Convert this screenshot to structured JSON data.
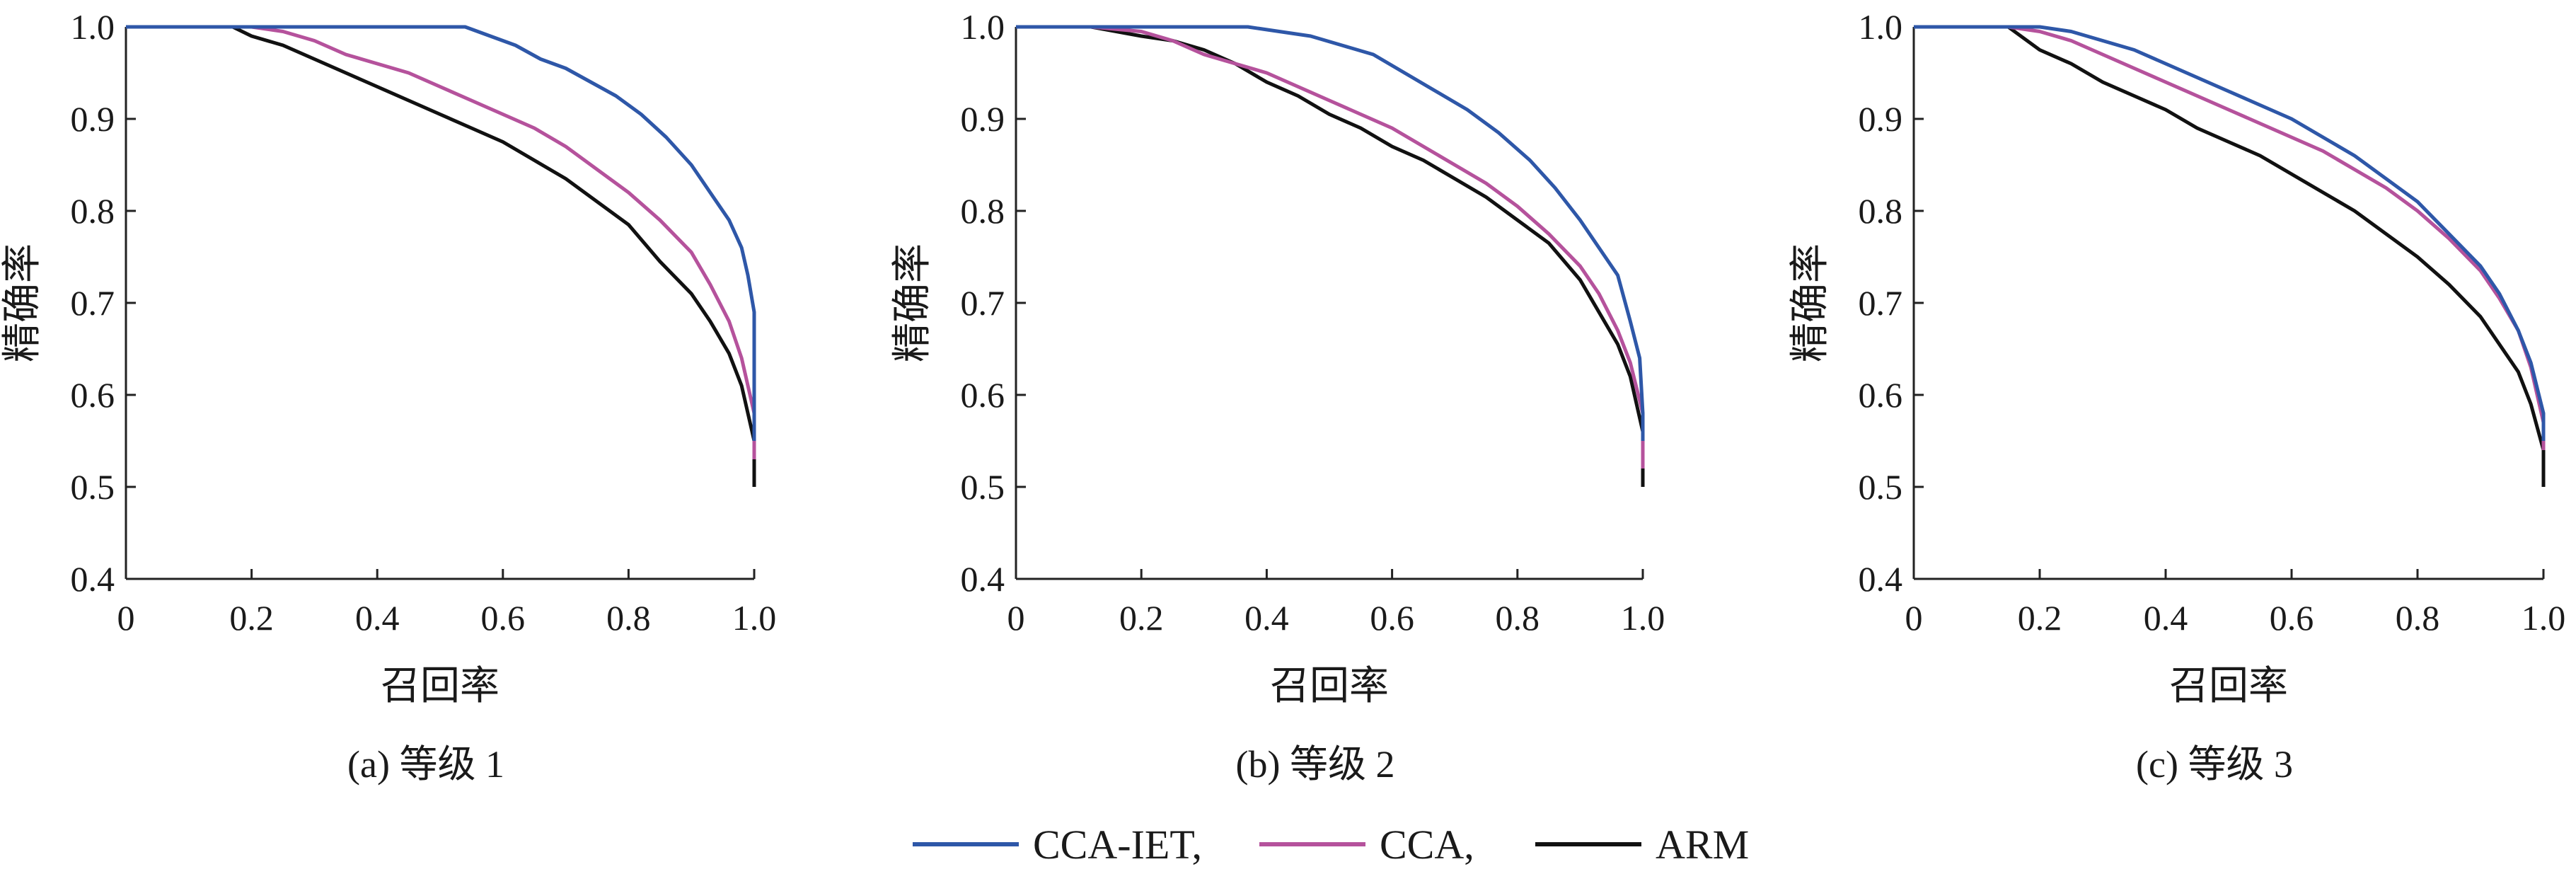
{
  "chart_data": [
    {
      "type": "line",
      "caption": "(a) 等级 1",
      "xlabel": "召回率",
      "ylabel": "精确率",
      "xlim": [
        0,
        1.0
      ],
      "ylim": [
        0.4,
        1.0
      ],
      "x_ticks": [
        "0",
        "0.2",
        "0.4",
        "0.6",
        "0.8",
        "1.0"
      ],
      "y_ticks": [
        "0.4",
        "0.5",
        "0.6",
        "0.7",
        "0.8",
        "0.9",
        "1.0"
      ],
      "series": [
        {
          "name": "CCA-IET,",
          "color": "#2e57a8",
          "points": [
            [
              0,
              1.0
            ],
            [
              0.2,
              1.0
            ],
            [
              0.4,
              1.0
            ],
            [
              0.54,
              1.0
            ],
            [
              0.58,
              0.99
            ],
            [
              0.62,
              0.98
            ],
            [
              0.66,
              0.965
            ],
            [
              0.7,
              0.955
            ],
            [
              0.74,
              0.94
            ],
            [
              0.78,
              0.925
            ],
            [
              0.82,
              0.905
            ],
            [
              0.86,
              0.88
            ],
            [
              0.9,
              0.85
            ],
            [
              0.93,
              0.82
            ],
            [
              0.96,
              0.79
            ],
            [
              0.98,
              0.76
            ],
            [
              0.99,
              0.73
            ],
            [
              1.0,
              0.69
            ],
            [
              1.0,
              0.55
            ]
          ]
        },
        {
          "name": "CCA,",
          "color": "#b5529c",
          "points": [
            [
              0,
              1.0
            ],
            [
              0.2,
              1.0
            ],
            [
              0.25,
              0.995
            ],
            [
              0.3,
              0.985
            ],
            [
              0.35,
              0.97
            ],
            [
              0.4,
              0.96
            ],
            [
              0.45,
              0.95
            ],
            [
              0.5,
              0.935
            ],
            [
              0.55,
              0.92
            ],
            [
              0.6,
              0.905
            ],
            [
              0.65,
              0.89
            ],
            [
              0.7,
              0.87
            ],
            [
              0.75,
              0.845
            ],
            [
              0.8,
              0.82
            ],
            [
              0.85,
              0.79
            ],
            [
              0.9,
              0.755
            ],
            [
              0.93,
              0.72
            ],
            [
              0.96,
              0.68
            ],
            [
              0.98,
              0.64
            ],
            [
              1.0,
              0.58
            ],
            [
              1.0,
              0.53
            ]
          ]
        },
        {
          "name": "ARM",
          "color": "#111111",
          "points": [
            [
              0,
              1.0
            ],
            [
              0.17,
              1.0
            ],
            [
              0.2,
              0.99
            ],
            [
              0.25,
              0.98
            ],
            [
              0.3,
              0.965
            ],
            [
              0.35,
              0.95
            ],
            [
              0.4,
              0.935
            ],
            [
              0.45,
              0.92
            ],
            [
              0.5,
              0.905
            ],
            [
              0.55,
              0.89
            ],
            [
              0.6,
              0.875
            ],
            [
              0.65,
              0.855
            ],
            [
              0.7,
              0.835
            ],
            [
              0.75,
              0.81
            ],
            [
              0.8,
              0.785
            ],
            [
              0.85,
              0.745
            ],
            [
              0.9,
              0.71
            ],
            [
              0.93,
              0.68
            ],
            [
              0.96,
              0.645
            ],
            [
              0.98,
              0.61
            ],
            [
              1.0,
              0.55
            ],
            [
              1.0,
              0.5
            ]
          ]
        }
      ]
    },
    {
      "type": "line",
      "caption": "(b) 等级 2",
      "xlabel": "召回率",
      "ylabel": "精确率",
      "xlim": [
        0,
        1.0
      ],
      "ylim": [
        0.4,
        1.0
      ],
      "x_ticks": [
        "0",
        "0.2",
        "0.4",
        "0.6",
        "0.8",
        "1.0"
      ],
      "y_ticks": [
        "0.4",
        "0.5",
        "0.6",
        "0.7",
        "0.8",
        "0.9",
        "1.0"
      ],
      "series": [
        {
          "name": "CCA-IET,",
          "color": "#2e57a8",
          "points": [
            [
              0,
              1.0
            ],
            [
              0.2,
              1.0
            ],
            [
              0.37,
              1.0
            ],
            [
              0.42,
              0.995
            ],
            [
              0.47,
              0.99
            ],
            [
              0.52,
              0.98
            ],
            [
              0.57,
              0.97
            ],
            [
              0.62,
              0.95
            ],
            [
              0.67,
              0.93
            ],
            [
              0.72,
              0.91
            ],
            [
              0.77,
              0.885
            ],
            [
              0.82,
              0.855
            ],
            [
              0.86,
              0.825
            ],
            [
              0.9,
              0.79
            ],
            [
              0.93,
              0.76
            ],
            [
              0.96,
              0.73
            ],
            [
              0.98,
              0.68
            ],
            [
              0.995,
              0.64
            ],
            [
              1.0,
              0.58
            ],
            [
              1.0,
              0.55
            ]
          ]
        },
        {
          "name": "CCA,",
          "color": "#b5529c",
          "points": [
            [
              0,
              1.0
            ],
            [
              0.12,
              1.0
            ],
            [
              0.2,
              0.995
            ],
            [
              0.25,
              0.985
            ],
            [
              0.3,
              0.97
            ],
            [
              0.35,
              0.96
            ],
            [
              0.4,
              0.95
            ],
            [
              0.45,
              0.935
            ],
            [
              0.5,
              0.92
            ],
            [
              0.55,
              0.905
            ],
            [
              0.6,
              0.89
            ],
            [
              0.65,
              0.87
            ],
            [
              0.7,
              0.85
            ],
            [
              0.75,
              0.83
            ],
            [
              0.8,
              0.805
            ],
            [
              0.85,
              0.775
            ],
            [
              0.9,
              0.74
            ],
            [
              0.93,
              0.71
            ],
            [
              0.96,
              0.67
            ],
            [
              0.98,
              0.635
            ],
            [
              1.0,
              0.58
            ],
            [
              1.0,
              0.52
            ]
          ]
        },
        {
          "name": "ARM",
          "color": "#111111",
          "points": [
            [
              0,
              1.0
            ],
            [
              0.12,
              1.0
            ],
            [
              0.2,
              0.99
            ],
            [
              0.25,
              0.985
            ],
            [
              0.3,
              0.975
            ],
            [
              0.35,
              0.96
            ],
            [
              0.4,
              0.94
            ],
            [
              0.45,
              0.925
            ],
            [
              0.5,
              0.905
            ],
            [
              0.55,
              0.89
            ],
            [
              0.6,
              0.87
            ],
            [
              0.65,
              0.855
            ],
            [
              0.7,
              0.835
            ],
            [
              0.75,
              0.815
            ],
            [
              0.8,
              0.79
            ],
            [
              0.85,
              0.765
            ],
            [
              0.9,
              0.725
            ],
            [
              0.93,
              0.69
            ],
            [
              0.96,
              0.655
            ],
            [
              0.98,
              0.62
            ],
            [
              1.0,
              0.56
            ],
            [
              1.0,
              0.5
            ]
          ]
        }
      ]
    },
    {
      "type": "line",
      "caption": "(c) 等级 3",
      "xlabel": "召回率",
      "ylabel": "精确率",
      "xlim": [
        0,
        1.0
      ],
      "ylim": [
        0.4,
        1.0
      ],
      "x_ticks": [
        "0",
        "0.2",
        "0.4",
        "0.6",
        "0.8",
        "1.0"
      ],
      "y_ticks": [
        "0.4",
        "0.5",
        "0.6",
        "0.7",
        "0.8",
        "0.9",
        "1.0"
      ],
      "series": [
        {
          "name": "CCA-IET,",
          "color": "#2e57a8",
          "points": [
            [
              0,
              1.0
            ],
            [
              0.15,
              1.0
            ],
            [
              0.2,
              1.0
            ],
            [
              0.25,
              0.995
            ],
            [
              0.3,
              0.985
            ],
            [
              0.35,
              0.975
            ],
            [
              0.4,
              0.96
            ],
            [
              0.45,
              0.945
            ],
            [
              0.5,
              0.93
            ],
            [
              0.55,
              0.915
            ],
            [
              0.6,
              0.9
            ],
            [
              0.65,
              0.88
            ],
            [
              0.7,
              0.86
            ],
            [
              0.75,
              0.835
            ],
            [
              0.8,
              0.81
            ],
            [
              0.85,
              0.775
            ],
            [
              0.9,
              0.74
            ],
            [
              0.93,
              0.71
            ],
            [
              0.96,
              0.67
            ],
            [
              0.98,
              0.635
            ],
            [
              1.0,
              0.58
            ],
            [
              1.0,
              0.55
            ]
          ]
        },
        {
          "name": "CCA,",
          "color": "#b5529c",
          "points": [
            [
              0,
              1.0
            ],
            [
              0.15,
              1.0
            ],
            [
              0.2,
              0.995
            ],
            [
              0.25,
              0.985
            ],
            [
              0.3,
              0.97
            ],
            [
              0.35,
              0.955
            ],
            [
              0.4,
              0.94
            ],
            [
              0.45,
              0.925
            ],
            [
              0.5,
              0.91
            ],
            [
              0.55,
              0.895
            ],
            [
              0.6,
              0.88
            ],
            [
              0.65,
              0.865
            ],
            [
              0.7,
              0.845
            ],
            [
              0.75,
              0.825
            ],
            [
              0.8,
              0.8
            ],
            [
              0.85,
              0.77
            ],
            [
              0.9,
              0.735
            ],
            [
              0.93,
              0.705
            ],
            [
              0.96,
              0.67
            ],
            [
              0.98,
              0.63
            ],
            [
              1.0,
              0.57
            ],
            [
              1.0,
              0.54
            ]
          ]
        },
        {
          "name": "ARM",
          "color": "#111111",
          "points": [
            [
              0,
              1.0
            ],
            [
              0.15,
              1.0
            ],
            [
              0.2,
              0.975
            ],
            [
              0.25,
              0.96
            ],
            [
              0.3,
              0.94
            ],
            [
              0.35,
              0.925
            ],
            [
              0.4,
              0.91
            ],
            [
              0.45,
              0.89
            ],
            [
              0.5,
              0.875
            ],
            [
              0.55,
              0.86
            ],
            [
              0.6,
              0.84
            ],
            [
              0.65,
              0.82
            ],
            [
              0.7,
              0.8
            ],
            [
              0.75,
              0.775
            ],
            [
              0.8,
              0.75
            ],
            [
              0.85,
              0.72
            ],
            [
              0.9,
              0.685
            ],
            [
              0.93,
              0.655
            ],
            [
              0.96,
              0.625
            ],
            [
              0.98,
              0.59
            ],
            [
              1.0,
              0.54
            ],
            [
              1.0,
              0.5
            ]
          ]
        }
      ]
    }
  ],
  "legend": {
    "placement": "bottom-center",
    "entries": [
      {
        "label": "CCA-IET,",
        "color": "#2e57a8"
      },
      {
        "label": "CCA,",
        "color": "#b5529c"
      },
      {
        "label": "ARM",
        "color": "#111111"
      }
    ]
  }
}
